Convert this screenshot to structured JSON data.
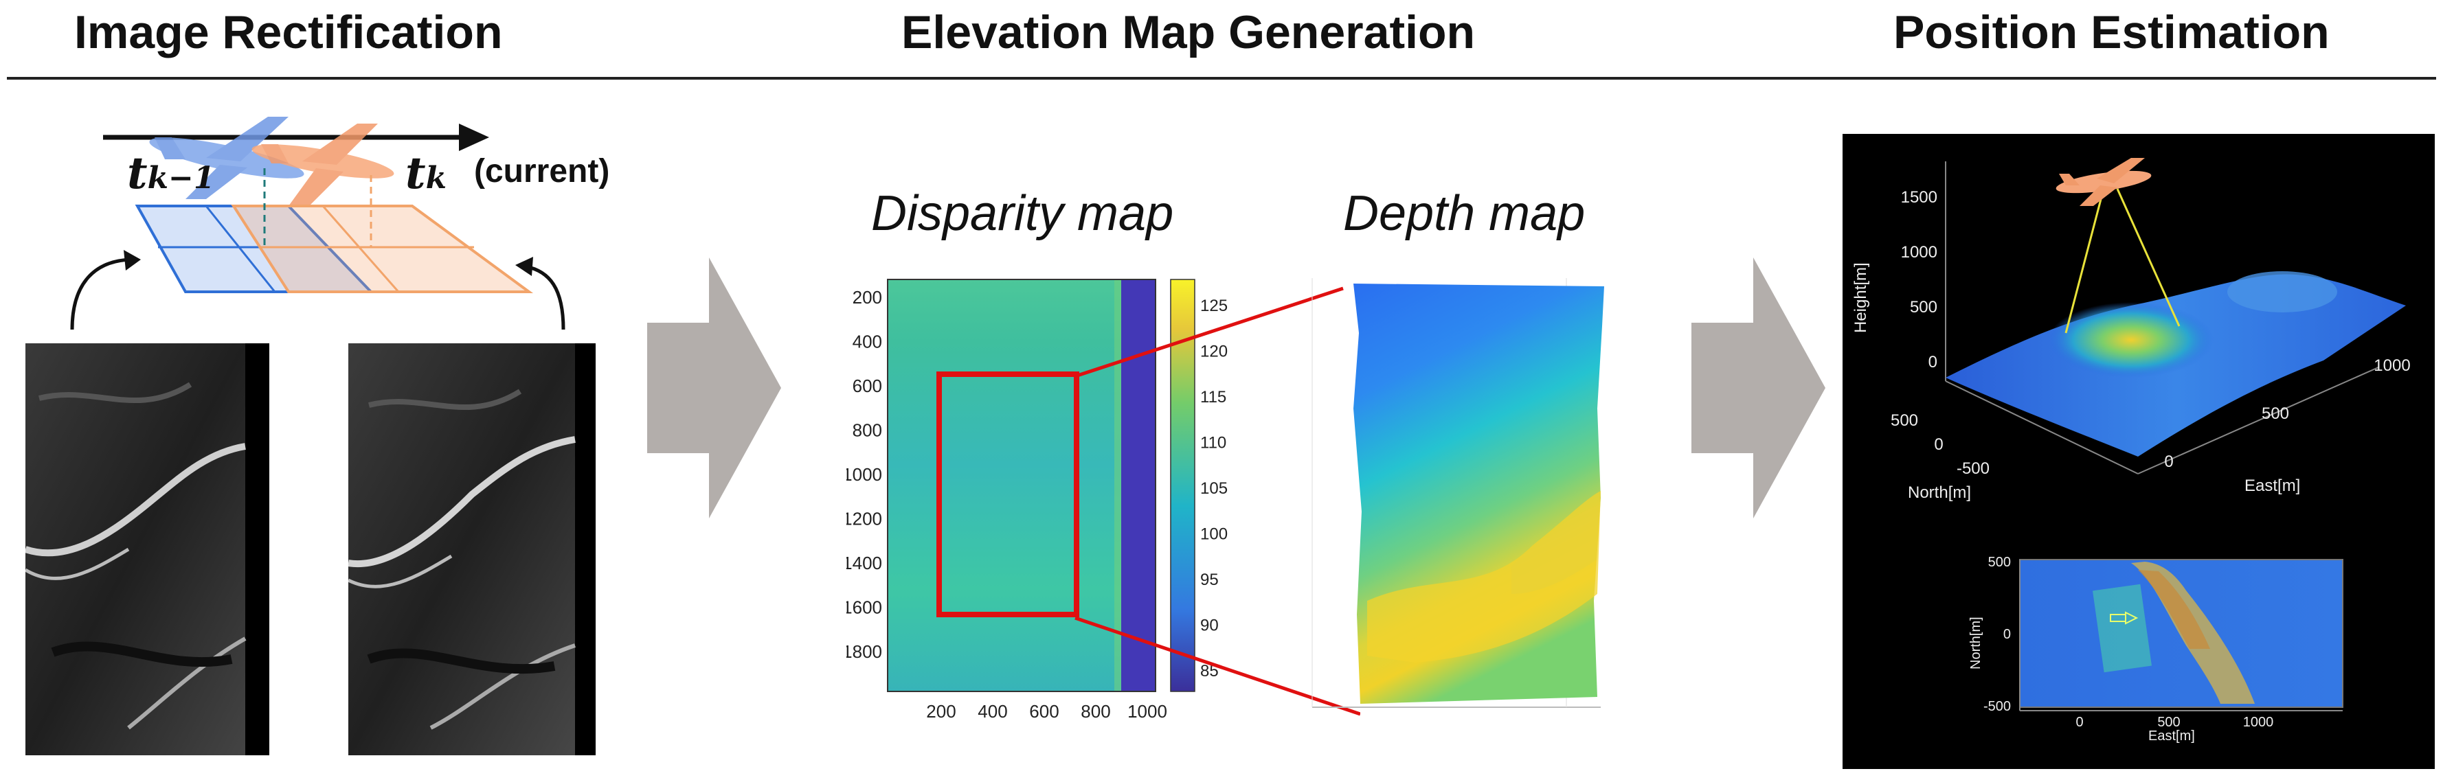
{
  "headers": {
    "rectification": "Image Rectification",
    "elevation": "Elevation Map Generation",
    "position": "Position Estimation"
  },
  "rectification": {
    "t_prev": "t",
    "t_prev_sub": "k−1",
    "t_cur": "t",
    "t_cur_sub": "k",
    "current_label": "(current)"
  },
  "disparity": {
    "title": "Disparity map",
    "y_ticks": [
      "200",
      "400",
      "600",
      "800",
      "1000",
      "1200",
      "1400",
      "1600",
      "1800"
    ],
    "x_ticks": [
      "200",
      "400",
      "600",
      "800",
      "1000"
    ],
    "colorbar_ticks": [
      "125",
      "120",
      "115",
      "110",
      "105",
      "100",
      "95",
      "90",
      "85"
    ]
  },
  "depth": {
    "title": "Depth map"
  },
  "position3d": {
    "z_ticks": [
      "1500",
      "1000",
      "500",
      "0"
    ],
    "north_ticks": [
      "500",
      "0",
      "-500"
    ],
    "east_ticks": [
      "0",
      "500",
      "1000"
    ],
    "z_label": "Height[m]",
    "north_label": "North[m]",
    "east_label": "East[m]"
  },
  "position2d": {
    "y_ticks": [
      "500",
      "0",
      "-500"
    ],
    "x_ticks": [
      "0",
      "500",
      "1000"
    ],
    "y_label": "North[m]",
    "x_label": "East[m]"
  },
  "colors": {
    "frame_prev": "#2f6fd6",
    "frame_cur": "#f2a46a",
    "arrow_gray": "#b3aeab",
    "highlight_red": "#e01010",
    "trajectory_yellow": "#e8e23a"
  }
}
